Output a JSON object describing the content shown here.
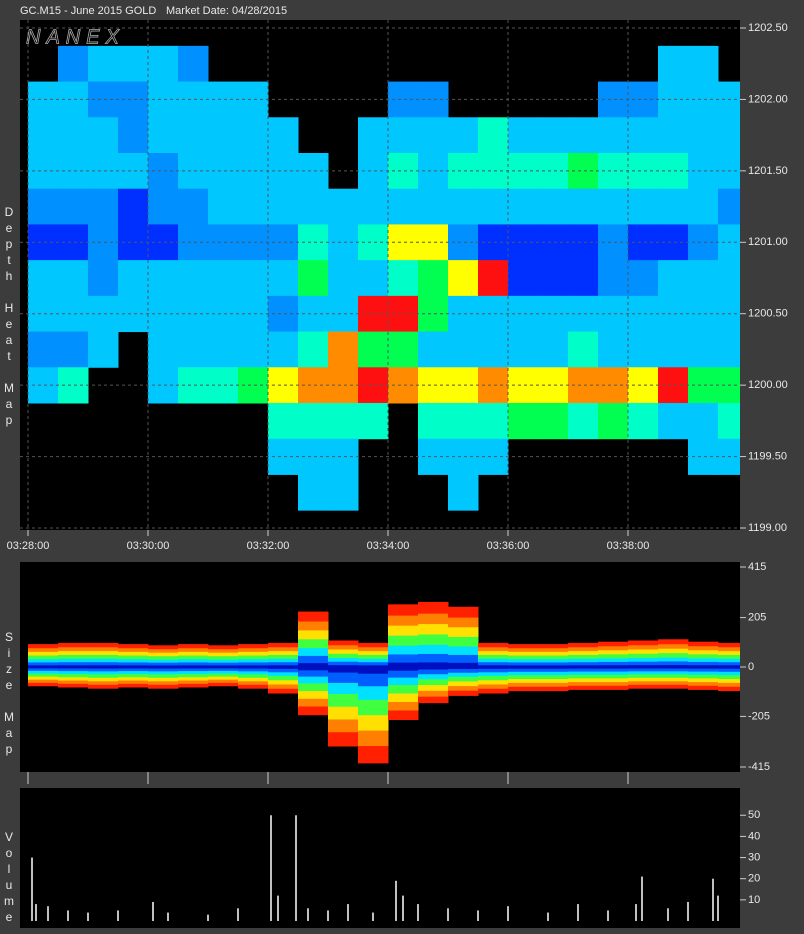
{
  "header": {
    "symbol": "GC.M15 - June 2015 GOLD",
    "market_date": "Market Date: 04/28/2015",
    "logo": "NANEX"
  },
  "chart_data": [
    {
      "type": "heatmap",
      "label": "Depth Heat Map",
      "x": [
        "03:28:00",
        "03:28:30",
        "03:29:00",
        "03:29:30",
        "03:30:00",
        "03:30:30",
        "03:31:00",
        "03:31:30",
        "03:32:00",
        "03:32:30",
        "03:33:00",
        "03:33:30",
        "03:34:00",
        "03:34:30",
        "03:35:00",
        "03:35:30",
        "03:36:00",
        "03:36:30",
        "03:37:00",
        "03:37:30",
        "03:38:00",
        "03:38:30",
        "03:39:00",
        "03:39:30"
      ],
      "y": [
        1202.25,
        1202,
        1201.75,
        1201.5,
        1201.25,
        1201,
        1200.75,
        1200.5,
        1200.25,
        1200,
        1199.75,
        1199.5,
        1199.25
      ],
      "z": [
        [
          null,
          2,
          3,
          3,
          3,
          2,
          null,
          null,
          null,
          null,
          null,
          null,
          null,
          null,
          null,
          null,
          null,
          null,
          null,
          null,
          null,
          3,
          3,
          null
        ],
        [
          3,
          3,
          2,
          2,
          3,
          3,
          3,
          3,
          null,
          null,
          null,
          null,
          2,
          2,
          null,
          null,
          null,
          null,
          null,
          2,
          2,
          3,
          3,
          3
        ],
        [
          3,
          3,
          3,
          2,
          3,
          3,
          3,
          3,
          3,
          null,
          null,
          3,
          3,
          3,
          3,
          4,
          3,
          3,
          3,
          3,
          3,
          3,
          3,
          3
        ],
        [
          3,
          3,
          3,
          3,
          2,
          3,
          3,
          3,
          3,
          3,
          null,
          3,
          4,
          3,
          4,
          4,
          4,
          4,
          5,
          4,
          4,
          4,
          3,
          3
        ],
        [
          2,
          2,
          2,
          1,
          2,
          2,
          3,
          3,
          3,
          3,
          3,
          3,
          3,
          3,
          3,
          3,
          3,
          3,
          3,
          3,
          3,
          3,
          3,
          2
        ],
        [
          1,
          1,
          2,
          1,
          1,
          2,
          2,
          2,
          2,
          4,
          3,
          4,
          6,
          6,
          2,
          1,
          1,
          1,
          1,
          2,
          1,
          1,
          2,
          3
        ],
        [
          3,
          3,
          2,
          3,
          3,
          3,
          3,
          3,
          3,
          5,
          3,
          3,
          4,
          5,
          6,
          8,
          1,
          1,
          1,
          2,
          2,
          3,
          3,
          3
        ],
        [
          3,
          3,
          3,
          3,
          3,
          3,
          3,
          3,
          2,
          3,
          3,
          8,
          8,
          5,
          3,
          3,
          3,
          3,
          3,
          3,
          3,
          3,
          3,
          3
        ],
        [
          2,
          2,
          3,
          null,
          3,
          3,
          3,
          3,
          3,
          4,
          7,
          5,
          5,
          3,
          3,
          3,
          3,
          3,
          4,
          3,
          3,
          3,
          3,
          3
        ],
        [
          3,
          4,
          null,
          null,
          3,
          4,
          4,
          5,
          6,
          7,
          7,
          8,
          7,
          6,
          6,
          7,
          6,
          6,
          7,
          7,
          6,
          8,
          5,
          5
        ],
        [
          null,
          null,
          null,
          null,
          null,
          null,
          null,
          null,
          4,
          4,
          4,
          4,
          null,
          4,
          4,
          4,
          5,
          5,
          4,
          5,
          4,
          3,
          3,
          4
        ],
        [
          null,
          null,
          null,
          null,
          null,
          null,
          null,
          null,
          3,
          3,
          3,
          null,
          null,
          3,
          3,
          3,
          null,
          null,
          null,
          null,
          null,
          null,
          3,
          3
        ],
        [
          null,
          null,
          null,
          null,
          null,
          null,
          null,
          null,
          null,
          3,
          3,
          null,
          null,
          null,
          3,
          null,
          null,
          null,
          null,
          null,
          null,
          null,
          null,
          null
        ]
      ],
      "colorscale": [
        "#0030ff",
        "#0090ff",
        "#00c8ff",
        "#00ffc8",
        "#00ff50",
        "#ffff00",
        "#ff8c00",
        "#ff1010"
      ],
      "ylim": [
        1199,
        1202.5
      ],
      "yticks": [
        {
          "value": 1202.5,
          "label": "1202.50"
        },
        {
          "value": 1202,
          "label": "1202.00"
        },
        {
          "value": 1201.5,
          "label": "1201.50"
        },
        {
          "value": 1201,
          "label": "1201.00"
        },
        {
          "value": 1200.5,
          "label": "1200.50"
        },
        {
          "value": 1200,
          "label": "1200.00"
        },
        {
          "value": 1199.5,
          "label": "1199.50"
        },
        {
          "value": 1199,
          "label": "1199.00"
        }
      ],
      "xticks": [
        "03:28:00",
        "03:30:00",
        "03:32:00",
        "03:34:00",
        "03:36:00",
        "03:38:00"
      ],
      "grid": true
    },
    {
      "type": "size",
      "label": "Size Map",
      "x": [
        "03:28:00",
        "03:28:30",
        "03:29:00",
        "03:29:30",
        "03:30:00",
        "03:30:30",
        "03:31:00",
        "03:31:30",
        "03:32:00",
        "03:32:30",
        "03:33:00",
        "03:33:30",
        "03:34:00",
        "03:34:30",
        "03:35:00",
        "03:35:30",
        "03:36:00",
        "03:36:30",
        "03:37:00",
        "03:37:30",
        "03:38:00",
        "03:38:30",
        "03:39:00",
        "03:39:30"
      ],
      "upper": [
        95,
        100,
        100,
        95,
        90,
        95,
        90,
        95,
        100,
        230,
        110,
        100,
        260,
        270,
        250,
        100,
        95,
        95,
        100,
        105,
        110,
        115,
        105,
        100
      ],
      "lower": [
        -80,
        -85,
        -90,
        -85,
        -90,
        -85,
        -80,
        -90,
        -110,
        -200,
        -330,
        -400,
        -220,
        -150,
        -120,
        -110,
        -100,
        -100,
        -95,
        -95,
        -90,
        -90,
        -95,
        -100
      ],
      "colors": [
        "#ff2000",
        "#ff8000",
        "#ffe000",
        "#40ff40",
        "#00e0ff",
        "#0060ff",
        "#0010c0"
      ],
      "ylim": [
        -415,
        415
      ],
      "yticks": [
        415,
        205,
        0,
        -205,
        -415
      ]
    },
    {
      "type": "bar",
      "label": "Volume",
      "x": [
        "03:28:04",
        "03:28:08",
        "03:28:20",
        "03:28:40",
        "03:29:00",
        "03:29:30",
        "03:30:05",
        "03:30:20",
        "03:31:00",
        "03:31:30",
        "03:32:03",
        "03:32:10",
        "03:32:28",
        "03:32:40",
        "03:33:00",
        "03:33:20",
        "03:33:45",
        "03:34:08",
        "03:34:15",
        "03:34:30",
        "03:35:00",
        "03:35:30",
        "03:36:00",
        "03:36:40",
        "03:37:10",
        "03:37:40",
        "03:38:08",
        "03:38:14",
        "03:38:40",
        "03:39:00",
        "03:39:25",
        "03:39:30"
      ],
      "values": [
        30,
        8,
        7,
        5,
        4,
        5,
        9,
        4,
        3,
        6,
        50,
        12,
        50,
        6,
        5,
        8,
        4,
        19,
        12,
        8,
        6,
        5,
        7,
        4,
        8,
        5,
        8,
        21,
        6,
        9,
        20,
        12
      ],
      "color": "#ffffff",
      "ylim": [
        0,
        61
      ],
      "yticks": [
        50,
        40,
        30,
        20,
        10
      ]
    }
  ]
}
